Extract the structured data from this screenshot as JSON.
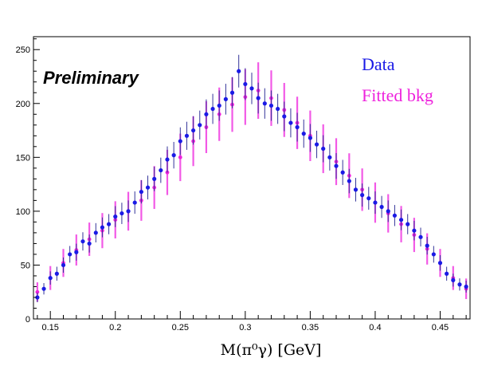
{
  "chart_data": {
    "type": "scatter",
    "xlabel": "M(π⁰γ) [GeV]",
    "ylabel": "",
    "annotation": "Preliminary",
    "xlim": [
      0.137,
      0.473
    ],
    "ylim": [
      0,
      262
    ],
    "xticks": [
      0.15,
      0.2,
      0.25,
      0.3,
      0.35,
      0.4,
      0.45
    ],
    "xtick_labels": [
      "0.15",
      "0.2",
      "0.25",
      "0.3",
      "0.35",
      "0.4",
      "0.45"
    ],
    "yticks": [
      0,
      50,
      100,
      150,
      200,
      250
    ],
    "ytick_labels": [
      "0",
      "50",
      "100",
      "150",
      "200",
      "250"
    ],
    "legend_position": "top-right",
    "series": [
      {
        "name": "Data",
        "color": "#1a1ae6",
        "marker": "circle-with-error-bars",
        "x": [
          0.14,
          0.145,
          0.15,
          0.155,
          0.16,
          0.165,
          0.17,
          0.175,
          0.18,
          0.185,
          0.19,
          0.195,
          0.2,
          0.205,
          0.21,
          0.215,
          0.22,
          0.225,
          0.23,
          0.235,
          0.24,
          0.245,
          0.25,
          0.255,
          0.26,
          0.265,
          0.27,
          0.275,
          0.28,
          0.285,
          0.29,
          0.295,
          0.3,
          0.305,
          0.31,
          0.315,
          0.32,
          0.325,
          0.33,
          0.335,
          0.34,
          0.345,
          0.35,
          0.355,
          0.36,
          0.365,
          0.37,
          0.375,
          0.38,
          0.385,
          0.39,
          0.395,
          0.4,
          0.405,
          0.41,
          0.415,
          0.42,
          0.425,
          0.43,
          0.435,
          0.44,
          0.445,
          0.45,
          0.455,
          0.46,
          0.465,
          0.47
        ],
        "y": [
          20,
          28,
          38,
          42,
          50,
          60,
          62,
          72,
          70,
          80,
          85,
          88,
          95,
          98,
          100,
          108,
          118,
          122,
          130,
          138,
          148,
          152,
          165,
          170,
          175,
          180,
          190,
          195,
          198,
          204,
          210,
          230,
          218,
          214,
          205,
          200,
          198,
          195,
          188,
          182,
          178,
          172,
          168,
          162,
          158,
          150,
          142,
          136,
          128,
          120,
          115,
          112,
          108,
          104,
          100,
          96,
          92,
          88,
          82,
          76,
          68,
          60,
          52,
          42,
          36,
          32,
          30
        ]
      },
      {
        "name": "Fitted bkg",
        "color": "#ee22dd",
        "marker": "band",
        "x": [
          0.14,
          0.15,
          0.16,
          0.17,
          0.18,
          0.19,
          0.2,
          0.21,
          0.22,
          0.23,
          0.24,
          0.25,
          0.26,
          0.27,
          0.28,
          0.29,
          0.3,
          0.31,
          0.32,
          0.33,
          0.34,
          0.35,
          0.36,
          0.37,
          0.38,
          0.39,
          0.4,
          0.41,
          0.42,
          0.43,
          0.44,
          0.45,
          0.46,
          0.47
        ],
        "y": [
          25,
          38,
          52,
          64,
          74,
          82,
          92,
          100,
          110,
          122,
          136,
          150,
          165,
          178,
          190,
          199,
          206,
          212,
          205,
          194,
          182,
          170,
          158,
          146,
          133,
          120,
          108,
          98,
          88,
          78,
          65,
          52,
          38,
          28
        ]
      }
    ]
  }
}
